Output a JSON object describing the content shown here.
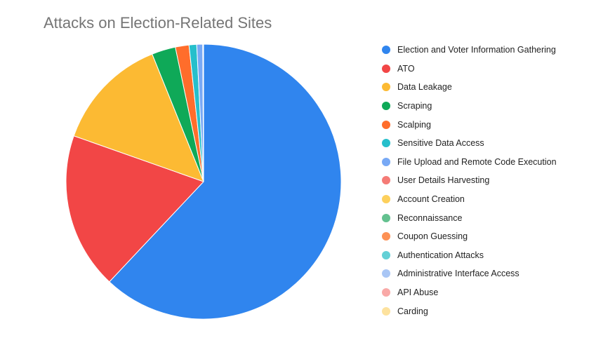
{
  "chart_data": {
    "type": "pie",
    "title": "Attacks on Election-Related Sites",
    "legend_position": "right",
    "slices": [
      {
        "label": "Election and Voter Information Gathering",
        "value": 62.0,
        "color": "#3085ee"
      },
      {
        "label": "ATO",
        "value": 18.4,
        "color": "#f24646"
      },
      {
        "label": "Data Leakage",
        "value": 13.5,
        "color": "#fcba33"
      },
      {
        "label": "Scraping",
        "value": 2.8,
        "color": "#0fa958"
      },
      {
        "label": "Scalping",
        "value": 1.6,
        "color": "#ff6d2b"
      },
      {
        "label": "Sensitive Data Access",
        "value": 0.9,
        "color": "#26bfcb"
      },
      {
        "label": "File Upload and Remote Code Execution",
        "value": 0.7,
        "color": "#78a9f5"
      },
      {
        "label": "User Details Harvesting",
        "value": 0.03,
        "color": "#f57b76"
      },
      {
        "label": "Account Creation",
        "value": 0.03,
        "color": "#fdd05c"
      },
      {
        "label": "Reconnaissance",
        "value": 0.01,
        "color": "#63c18f"
      },
      {
        "label": "Coupon Guessing",
        "value": 0.01,
        "color": "#fd9155"
      },
      {
        "label": "Authentication Attacks",
        "value": 0.005,
        "color": "#63d0d6"
      },
      {
        "label": "Administrative Interface Access",
        "value": 0.005,
        "color": "#a9c6f5"
      },
      {
        "label": "API Abuse",
        "value": 0.003,
        "color": "#f9a9a7"
      },
      {
        "label": "Carding",
        "value": 0.002,
        "color": "#fde29e"
      }
    ]
  }
}
